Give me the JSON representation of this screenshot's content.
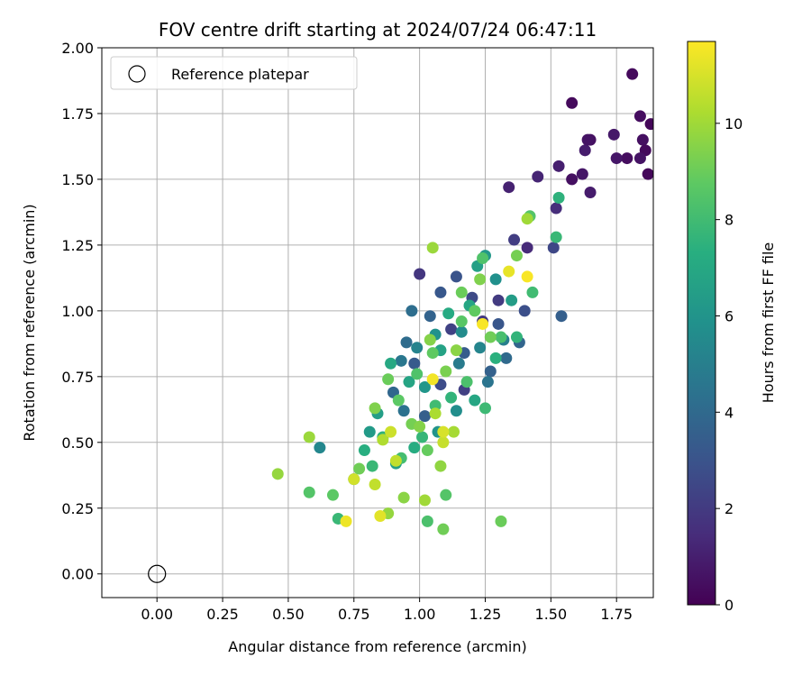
{
  "chart_data": {
    "type": "scatter",
    "title": "FOV centre drift starting at 2024/07/24 06:47:11",
    "xlabel": "Angular distance from reference (arcmin)",
    "ylabel": "Rotation from reference (arcmin)",
    "xlim": [
      -0.21,
      1.89
    ],
    "ylim": [
      -0.09,
      2.0
    ],
    "xticks": [
      0.0,
      0.25,
      0.5,
      0.75,
      1.0,
      1.25,
      1.5,
      1.75
    ],
    "xtick_labels": [
      "0.00",
      "0.25",
      "0.50",
      "0.75",
      "1.00",
      "1.25",
      "1.50",
      "1.75"
    ],
    "yticks": [
      0.0,
      0.25,
      0.5,
      0.75,
      1.0,
      1.25,
      1.5,
      1.75,
      2.0
    ],
    "ytick_labels": [
      "0.00",
      "0.25",
      "0.50",
      "0.75",
      "1.00",
      "1.25",
      "1.50",
      "1.75",
      "2.00"
    ],
    "grid": true,
    "legend": {
      "placement": "top-left",
      "entries": [
        {
          "label": "Reference platepar",
          "marker": "open-circle"
        }
      ]
    },
    "reference_point": {
      "x": 0.0,
      "y": 0.0
    },
    "colorbar": {
      "label": "Hours from first FF file",
      "colormap": "viridis",
      "range": [
        0,
        11.7
      ],
      "ticks": [
        0,
        2,
        4,
        6,
        8,
        10
      ],
      "tick_labels": [
        "0",
        "2",
        "4",
        "6",
        "8",
        "10"
      ]
    },
    "points": [
      [
        1.81,
        1.9,
        0.3
      ],
      [
        1.84,
        1.74,
        0.4
      ],
      [
        1.88,
        1.71,
        0.2
      ],
      [
        1.85,
        1.65,
        0.5
      ],
      [
        1.86,
        1.61,
        0.3
      ],
      [
        1.84,
        1.58,
        0.6
      ],
      [
        1.87,
        1.52,
        0.2
      ],
      [
        1.74,
        1.67,
        0.8
      ],
      [
        1.79,
        1.58,
        0.4
      ],
      [
        1.75,
        1.58,
        0.7
      ],
      [
        1.65,
        1.65,
        0.5
      ],
      [
        1.63,
        1.61,
        0.9
      ],
      [
        1.64,
        1.65,
        0.6
      ],
      [
        1.58,
        1.79,
        0.3
      ],
      [
        1.62,
        1.52,
        0.7
      ],
      [
        1.58,
        1.5,
        0.5
      ],
      [
        1.65,
        1.45,
        0.9
      ],
      [
        1.53,
        1.55,
        1.0
      ],
      [
        1.45,
        1.51,
        1.2
      ],
      [
        1.34,
        1.47,
        1.1
      ],
      [
        1.52,
        1.39,
        1.5
      ],
      [
        1.41,
        1.24,
        1.4
      ],
      [
        1.51,
        1.24,
        2.5
      ],
      [
        1.36,
        1.27,
        2.1
      ],
      [
        1.54,
        0.98,
        3.5
      ],
      [
        1.38,
        0.88,
        3.8
      ],
      [
        1.33,
        0.82,
        4.0
      ],
      [
        1.4,
        1.0,
        2.8
      ],
      [
        1.3,
        0.95,
        3.1
      ],
      [
        1.27,
        0.77,
        3.6
      ],
      [
        1.24,
        0.96,
        1.9
      ],
      [
        1.3,
        1.04,
        2.0
      ],
      [
        1.2,
        1.05,
        2.6
      ],
      [
        1.14,
        1.13,
        3.0
      ],
      [
        1.0,
        1.14,
        1.8
      ],
      [
        1.08,
        1.07,
        3.2
      ],
      [
        1.17,
        0.84,
        3.4
      ],
      [
        1.12,
        0.93,
        2.3
      ],
      [
        0.97,
        1.0,
        4.2
      ],
      [
        1.04,
        0.98,
        3.7
      ],
      [
        0.95,
        0.88,
        4.1
      ],
      [
        0.98,
        0.8,
        3.3
      ],
      [
        1.08,
        0.72,
        2.7
      ],
      [
        1.17,
        0.7,
        2.2
      ],
      [
        1.26,
        0.73,
        4.5
      ],
      [
        0.93,
        0.81,
        4.6
      ],
      [
        0.9,
        0.69,
        3.9
      ],
      [
        0.94,
        0.62,
        4.4
      ],
      [
        1.02,
        0.6,
        3.5
      ],
      [
        1.15,
        0.8,
        4.8
      ],
      [
        1.32,
        0.89,
        5.0
      ],
      [
        1.23,
        0.86,
        5.3
      ],
      [
        1.16,
        0.92,
        5.6
      ],
      [
        1.06,
        0.91,
        5.9
      ],
      [
        0.99,
        0.86,
        5.2
      ],
      [
        1.25,
        1.21,
        6.2
      ],
      [
        1.22,
        1.17,
        6.6
      ],
      [
        1.29,
        1.12,
        5.8
      ],
      [
        1.35,
        1.04,
        6.4
      ],
      [
        1.19,
        1.02,
        6.9
      ],
      [
        1.11,
        0.99,
        7.1
      ],
      [
        1.08,
        0.85,
        6.7
      ],
      [
        1.02,
        0.71,
        6.1
      ],
      [
        0.96,
        0.73,
        6.8
      ],
      [
        0.89,
        0.8,
        7.0
      ],
      [
        0.84,
        0.61,
        6.5
      ],
      [
        0.81,
        0.54,
        6.3
      ],
      [
        0.91,
        0.42,
        6.6
      ],
      [
        0.98,
        0.48,
        7.2
      ],
      [
        1.07,
        0.54,
        6.0
      ],
      [
        1.14,
        0.62,
        5.7
      ],
      [
        1.21,
        0.66,
        6.9
      ],
      [
        1.29,
        0.82,
        7.4
      ],
      [
        0.62,
        0.48,
        5.4
      ],
      [
        0.75,
        0.36,
        6.0
      ],
      [
        0.79,
        0.47,
        7.3
      ],
      [
        0.82,
        0.41,
        7.8
      ],
      [
        0.86,
        0.52,
        7.5
      ],
      [
        0.93,
        0.44,
        8.1
      ],
      [
        1.01,
        0.52,
        7.7
      ],
      [
        1.06,
        0.64,
        8.0
      ],
      [
        1.12,
        0.67,
        7.6
      ],
      [
        1.18,
        0.73,
        8.3
      ],
      [
        1.25,
        0.63,
        7.9
      ],
      [
        1.31,
        0.9,
        8.2
      ],
      [
        1.24,
        1.2,
        8.4
      ],
      [
        1.42,
        1.36,
        8.5
      ],
      [
        1.52,
        1.28,
        7.8
      ],
      [
        1.53,
        1.43,
        7.5
      ],
      [
        1.43,
        1.07,
        8.0
      ],
      [
        1.37,
        0.9,
        7.6
      ],
      [
        1.16,
        0.96,
        8.6
      ],
      [
        1.05,
        0.84,
        8.8
      ],
      [
        0.99,
        0.76,
        8.4
      ],
      [
        0.92,
        0.66,
        8.7
      ],
      [
        0.88,
        0.74,
        9.0
      ],
      [
        0.97,
        0.57,
        9.2
      ],
      [
        1.03,
        0.47,
        8.9
      ],
      [
        1.1,
        0.3,
        8.5
      ],
      [
        1.03,
        0.2,
        8.3
      ],
      [
        1.09,
        0.17,
        9.1
      ],
      [
        1.31,
        0.2,
        9.0
      ],
      [
        0.58,
        0.31,
        8.5
      ],
      [
        0.67,
        0.3,
        8.7
      ],
      [
        0.69,
        0.21,
        7.8
      ],
      [
        0.77,
        0.4,
        9.1
      ],
      [
        0.88,
        0.23,
        9.8
      ],
      [
        1.02,
        0.28,
        10.0
      ],
      [
        0.94,
        0.29,
        9.6
      ],
      [
        0.46,
        0.38,
        9.8
      ],
      [
        0.58,
        0.52,
        9.9
      ],
      [
        0.83,
        0.63,
        9.4
      ],
      [
        0.86,
        0.51,
        10.3
      ],
      [
        0.91,
        0.43,
        10.6
      ],
      [
        1.0,
        0.56,
        9.5
      ],
      [
        1.06,
        0.61,
        10.2
      ],
      [
        1.13,
        0.54,
        10.1
      ],
      [
        1.09,
        0.5,
        10.7
      ],
      [
        1.08,
        0.41,
        9.7
      ],
      [
        1.1,
        0.77,
        9.3
      ],
      [
        1.14,
        0.85,
        9.6
      ],
      [
        1.04,
        0.89,
        9.5
      ],
      [
        1.05,
        1.24,
        9.9
      ],
      [
        1.41,
        1.35,
        10.0
      ],
      [
        1.37,
        1.21,
        9.2
      ],
      [
        1.23,
        1.12,
        9.4
      ],
      [
        1.16,
        1.07,
        9.0
      ],
      [
        1.21,
        1.0,
        8.8
      ],
      [
        1.27,
        0.9,
        9.1
      ],
      [
        0.72,
        0.2,
        11.4
      ],
      [
        0.75,
        0.36,
        10.9
      ],
      [
        0.83,
        0.34,
        10.6
      ],
      [
        0.85,
        0.22,
        11.2
      ],
      [
        0.89,
        0.54,
        10.8
      ],
      [
        1.05,
        0.74,
        11.5
      ],
      [
        1.09,
        0.54,
        11.0
      ],
      [
        1.24,
        0.95,
        11.6
      ],
      [
        1.34,
        1.15,
        11.3
      ],
      [
        1.41,
        1.13,
        11.6
      ]
    ]
  }
}
